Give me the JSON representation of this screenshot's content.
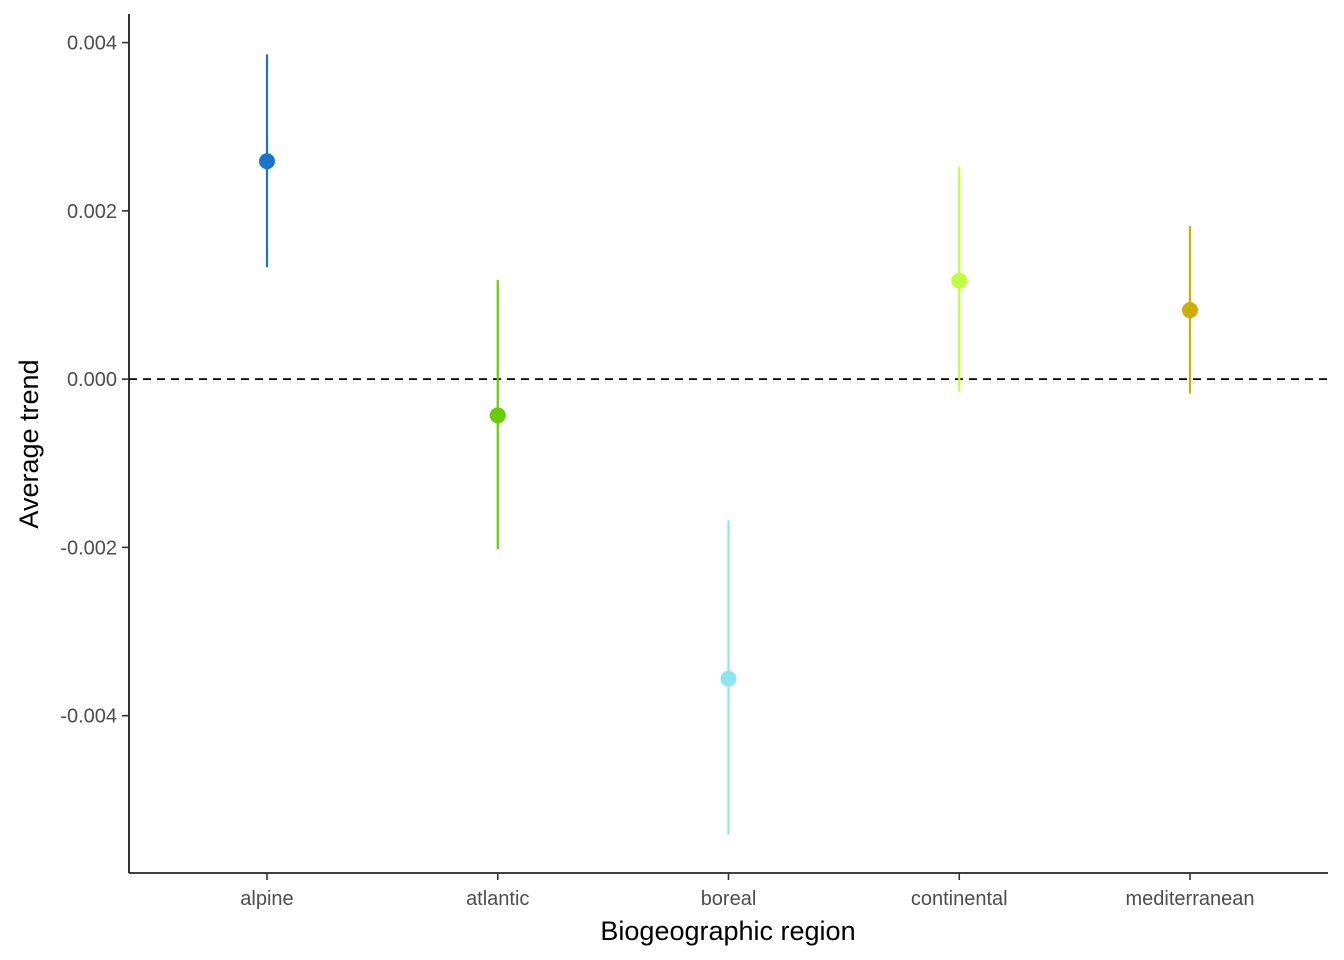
{
  "chart_data": {
    "type": "scatter",
    "xlabel": "Biogeographic region",
    "ylabel": "Average trend",
    "categories": [
      "alpine",
      "atlantic",
      "boreal",
      "continental",
      "mediterranean"
    ],
    "points": [
      {
        "category": "alpine",
        "value": 0.00259,
        "lower": 0.00133,
        "upper": 0.00386,
        "color": "#1874CD"
      },
      {
        "category": "atlantic",
        "value": -0.00043,
        "lower": -0.00202,
        "upper": 0.00118,
        "color": "#66CD00"
      },
      {
        "category": "boreal",
        "value": -0.00356,
        "lower": -0.00541,
        "upper": -0.00168,
        "color": "#8EE5EE"
      },
      {
        "category": "continental",
        "value": 0.00117,
        "lower": -0.00015,
        "upper": 0.00252,
        "color": "#C0FF3E"
      },
      {
        "category": "mediterranean",
        "value": 0.00082,
        "lower": -0.00017,
        "upper": 0.00182,
        "color": "#CDAD00"
      }
    ],
    "reference_line": {
      "value": 0.0,
      "style": "dashed"
    },
    "yticks": [
      -0.004,
      -0.002,
      0.0,
      0.002,
      0.004
    ],
    "ytick_labels": [
      "-0.004",
      "-0.002",
      "0.000",
      "0.002",
      "0.004"
    ],
    "ylim": [
      -0.00587,
      0.00434
    ],
    "grid": false,
    "legend": "none"
  }
}
